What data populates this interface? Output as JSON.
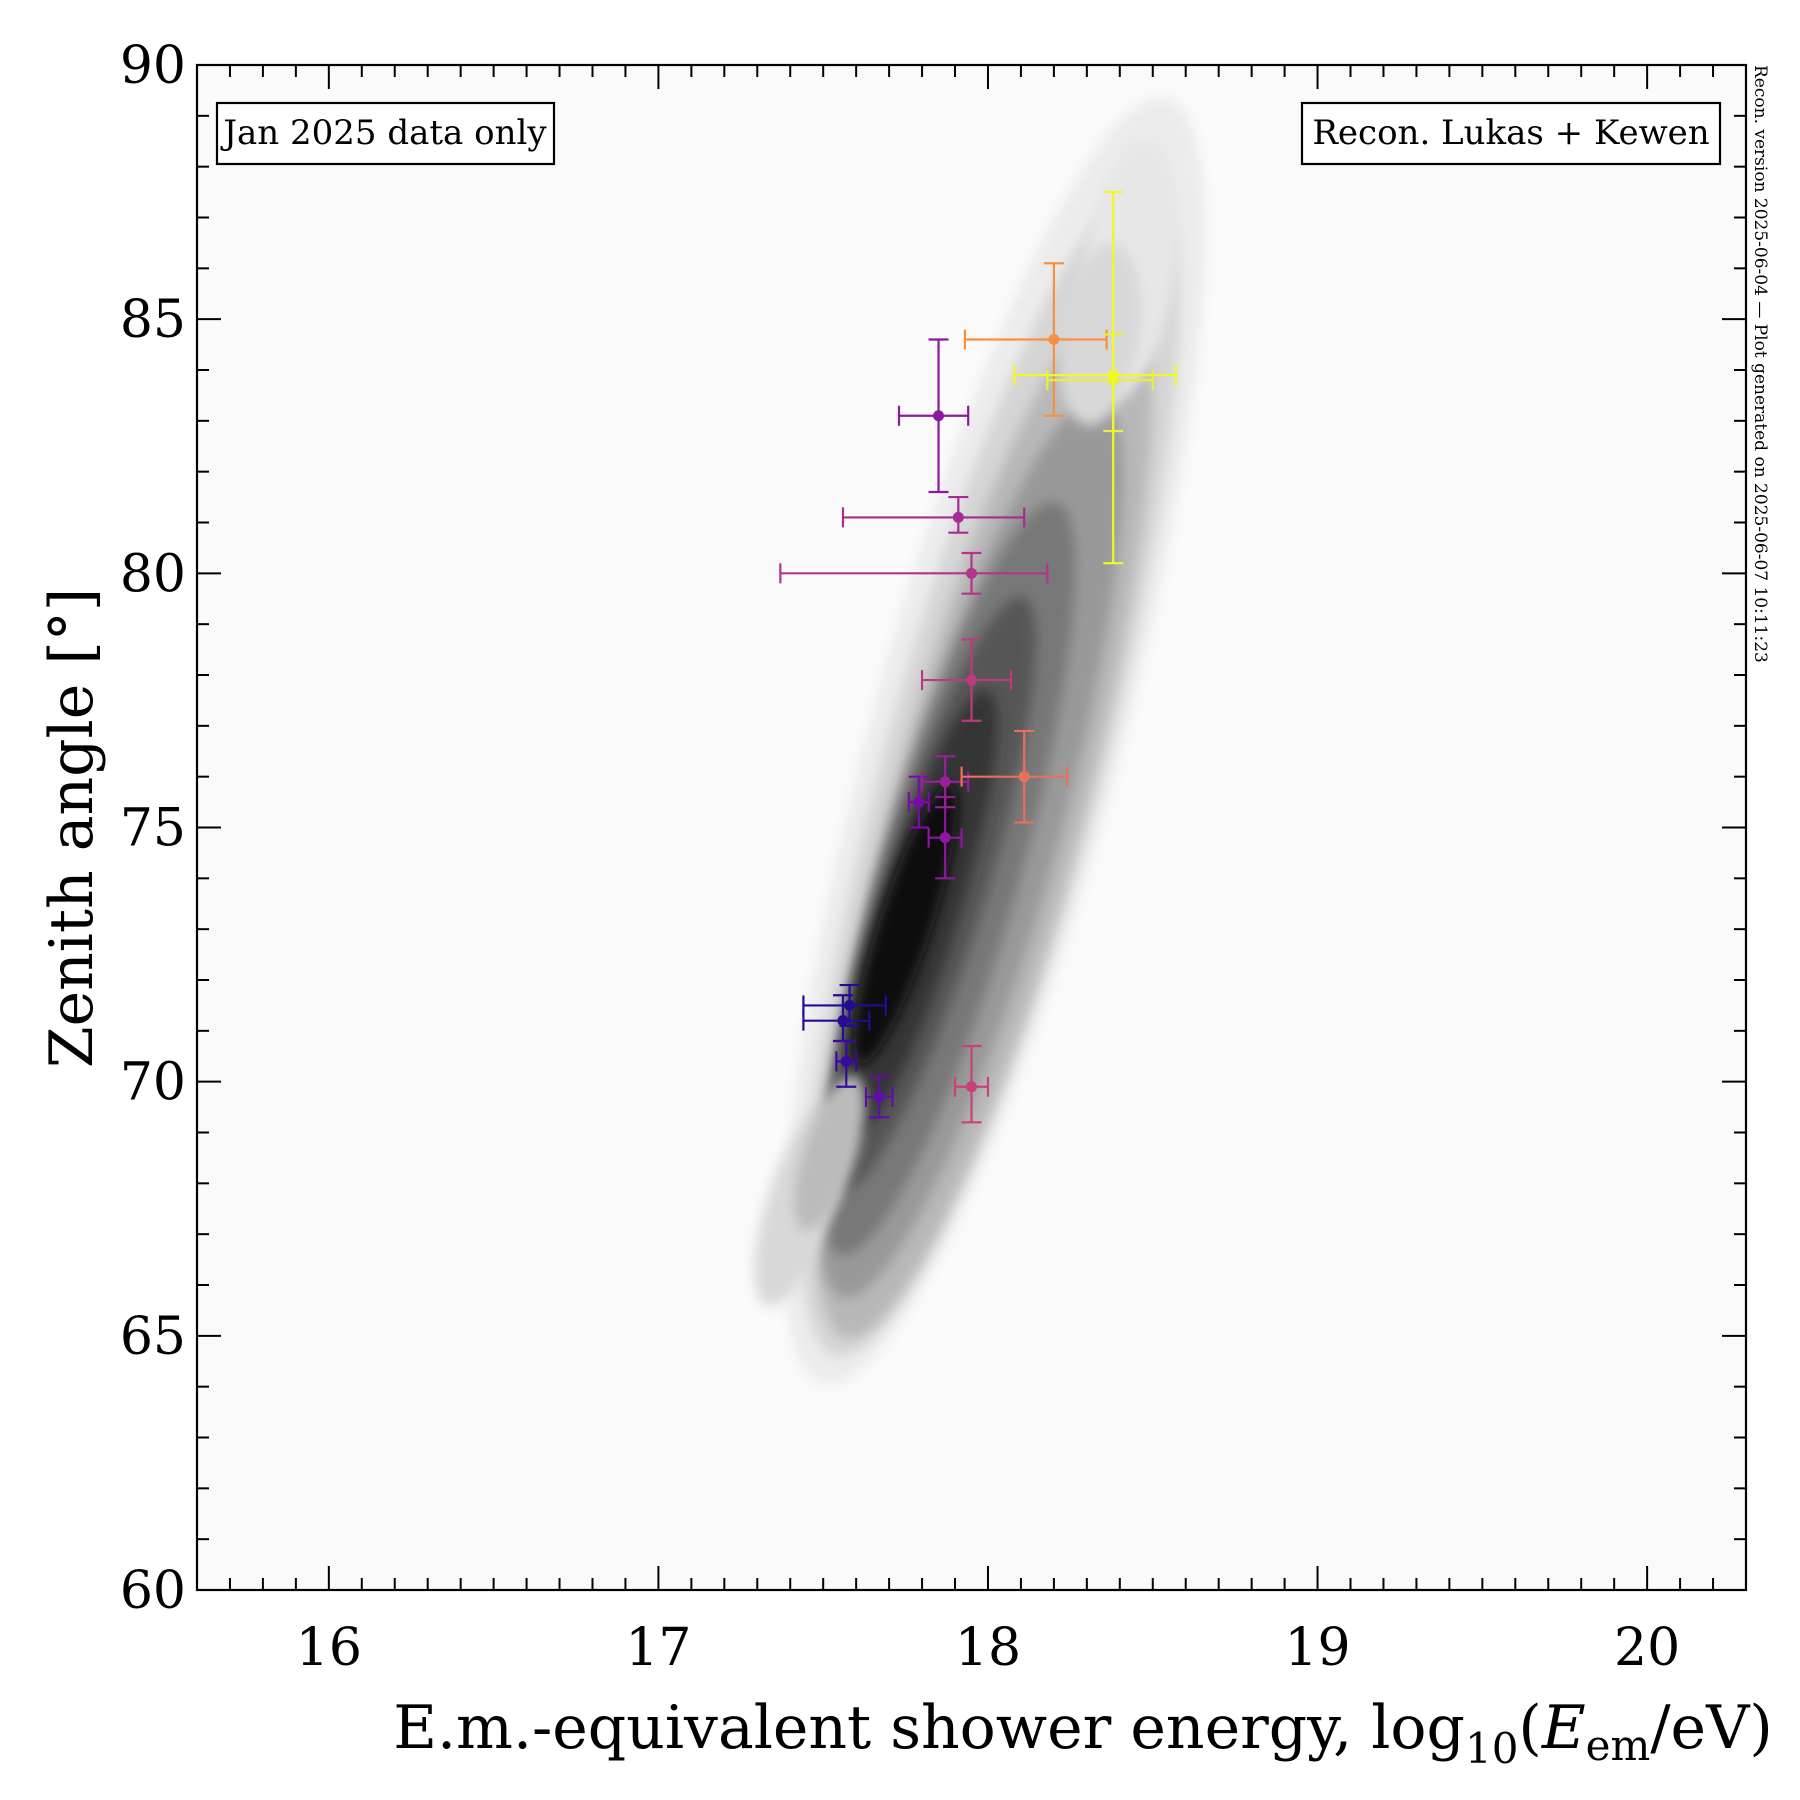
{
  "chart_data": {
    "type": "scatter",
    "title": "",
    "xlabel": {
      "main": "E.m.-equivalent shower energy, log",
      "sub": "10",
      "open": "(",
      "var": "E",
      "var_sub": "em",
      "unit": "/eV)"
    },
    "ylabel": "Zenith angle [°]",
    "xlim": [
      15.6,
      20.3
    ],
    "ylim": [
      60,
      90
    ],
    "xticks": [
      16,
      17,
      18,
      19,
      20
    ],
    "xtick_labels": [
      "16",
      "17",
      "18",
      "19",
      "20"
    ],
    "yticks": [
      60,
      65,
      70,
      75,
      80,
      85,
      90
    ],
    "ytick_labels": [
      "60",
      "65",
      "70",
      "75",
      "80",
      "85",
      "90"
    ],
    "grid": false,
    "annotations": {
      "top_left": "Jan 2025 data only",
      "top_right": "Recon. Lukas + Kewen",
      "right_side": "Recon. version 2025-06-04 — Plot generated on 2025-06-07 10:11:23"
    },
    "density_background": {
      "type": "contourf",
      "colormap": "greys",
      "ridge_ordered_levels": [
        0.04,
        0.14,
        0.26,
        0.38,
        0.5,
        0.62,
        0.74,
        0.86
      ]
    },
    "points": [
      {
        "x": 17.56,
        "y": 71.2,
        "xerr": [
          0.12,
          0.08
        ],
        "yerr": [
          0.4,
          0.5
        ],
        "color": "#2a0a8e"
      },
      {
        "x": 17.58,
        "y": 71.5,
        "xerr": [
          0.14,
          0.11
        ],
        "yerr": [
          0.4,
          0.4
        ],
        "color": "#200d95"
      },
      {
        "x": 17.57,
        "y": 70.4,
        "xerr": [
          0.03,
          0.03
        ],
        "yerr": [
          0.5,
          0.4
        ],
        "color": "#3a0aa0"
      },
      {
        "x": 17.67,
        "y": 69.7,
        "xerr": [
          0.04,
          0.04
        ],
        "yerr": [
          0.4,
          0.4
        ],
        "color": "#5d0fa8"
      },
      {
        "x": 17.79,
        "y": 75.5,
        "xerr": [
          0.03,
          0.03
        ],
        "yerr": [
          0.5,
          0.5
        ],
        "color": "#7a0ba7"
      },
      {
        "x": 17.87,
        "y": 74.8,
        "xerr": [
          0.05,
          0.05
        ],
        "yerr": [
          0.8,
          0.8
        ],
        "color": "#8c189f"
      },
      {
        "x": 17.87,
        "y": 75.9,
        "xerr": [
          0.07,
          0.07
        ],
        "yerr": [
          0.5,
          0.5
        ],
        "color": "#98209a"
      },
      {
        "x": 17.85,
        "y": 83.1,
        "xerr": [
          0.12,
          0.09
        ],
        "yerr": [
          1.5,
          1.5
        ],
        "color": "#8b1a9e"
      },
      {
        "x": 17.91,
        "y": 81.1,
        "xerr": [
          0.35,
          0.2
        ],
        "yerr": [
          0.3,
          0.4
        ],
        "color": "#a52c93"
      },
      {
        "x": 17.95,
        "y": 80.0,
        "xerr": [
          0.58,
          0.23
        ],
        "yerr": [
          0.4,
          0.4
        ],
        "color": "#b33489"
      },
      {
        "x": 17.95,
        "y": 77.9,
        "xerr": [
          0.15,
          0.12
        ],
        "yerr": [
          0.8,
          0.8
        ],
        "color": "#bc3a80"
      },
      {
        "x": 17.95,
        "y": 69.9,
        "xerr": [
          0.05,
          0.05
        ],
        "yerr": [
          0.7,
          0.8
        ],
        "color": "#c8417a"
      },
      {
        "x": 18.11,
        "y": 76.0,
        "xerr": [
          0.19,
          0.13
        ],
        "yerr": [
          0.9,
          0.9
        ],
        "color": "#e9705a"
      },
      {
        "x": 18.2,
        "y": 84.6,
        "xerr": [
          0.27,
          0.16
        ],
        "yerr": [
          1.5,
          1.5
        ],
        "color": "#f79042"
      },
      {
        "x": 18.38,
        "y": 83.8,
        "xerr": [
          0.2,
          0.12
        ],
        "yerr": [
          1.0,
          0.9
        ],
        "color": "#e9f133"
      },
      {
        "x": 18.38,
        "y": 83.9,
        "xerr": [
          0.3,
          0.19
        ],
        "yerr": [
          3.7,
          3.6
        ],
        "color": "#f0f921"
      }
    ]
  }
}
